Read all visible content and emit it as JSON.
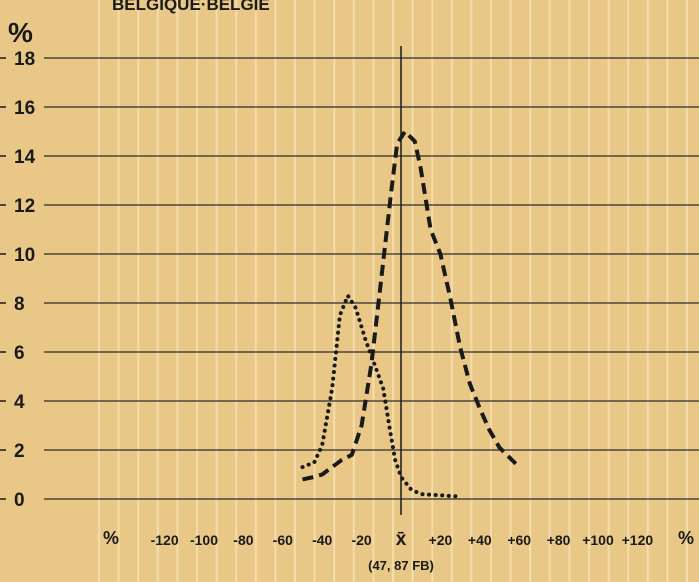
{
  "header": {
    "title": "BELGIQUE·BELGIE"
  },
  "chart_data": {
    "type": "line",
    "title": "BELGIQUE·BELGIE",
    "ylabel": "%",
    "xunit_left": "%",
    "xunit_right": "%",
    "ylim": [
      0,
      18
    ],
    "xlim": [
      -120,
      120
    ],
    "yticks": [
      "0",
      "2",
      "4",
      "6",
      "8",
      "10",
      "12",
      "14",
      "16",
      "18"
    ],
    "xticks": [
      {
        "v": -120,
        "label": "-120"
      },
      {
        "v": -100,
        "label": "-100"
      },
      {
        "v": -80,
        "label": "-80"
      },
      {
        "v": -60,
        "label": "-60"
      },
      {
        "v": -40,
        "label": "-40"
      },
      {
        "v": -20,
        "label": "-20"
      },
      {
        "v": 0,
        "label": "x̄"
      },
      {
        "v": 20,
        "label": "+20"
      },
      {
        "v": 40,
        "label": "+40"
      },
      {
        "v": 60,
        "label": "+60"
      },
      {
        "v": 80,
        "label": "+80"
      },
      {
        "v": 100,
        "label": "+100"
      },
      {
        "v": 120,
        "label": "+120"
      }
    ],
    "mean_label": "(47, 87 FB)",
    "grid": true,
    "series": [
      {
        "style": "dashed",
        "points": [
          [
            -50,
            0.8
          ],
          [
            -44,
            0.9
          ],
          [
            -40,
            1.0
          ],
          [
            -35,
            1.3
          ],
          [
            -30,
            1.6
          ],
          [
            -25,
            1.8
          ],
          [
            -20,
            3.0
          ],
          [
            -15,
            5.5
          ],
          [
            -10,
            9.0
          ],
          [
            -5,
            12.5
          ],
          [
            -2,
            14.5
          ],
          [
            2,
            15.0
          ],
          [
            7,
            14.6
          ],
          [
            10,
            13.5
          ],
          [
            15,
            11.0
          ],
          [
            20,
            10.0
          ],
          [
            25,
            8.2
          ],
          [
            30,
            6.2
          ],
          [
            35,
            4.7
          ],
          [
            40,
            3.7
          ],
          [
            45,
            2.8
          ],
          [
            50,
            2.1
          ],
          [
            55,
            1.7
          ],
          [
            60,
            1.3
          ]
        ]
      },
      {
        "style": "dotted",
        "points": [
          [
            -50,
            1.3
          ],
          [
            -44,
            1.5
          ],
          [
            -40,
            2.2
          ],
          [
            -35,
            4.5
          ],
          [
            -31,
            7.5
          ],
          [
            -27,
            8.3
          ],
          [
            -23,
            7.8
          ],
          [
            -18,
            6.5
          ],
          [
            -13,
            5.4
          ],
          [
            -9,
            4.5
          ],
          [
            -6,
            3.0
          ],
          [
            -3,
            1.6
          ],
          [
            0,
            0.9
          ],
          [
            5,
            0.4
          ],
          [
            10,
            0.2
          ],
          [
            20,
            0.15
          ],
          [
            30,
            0.1
          ]
        ]
      }
    ]
  }
}
